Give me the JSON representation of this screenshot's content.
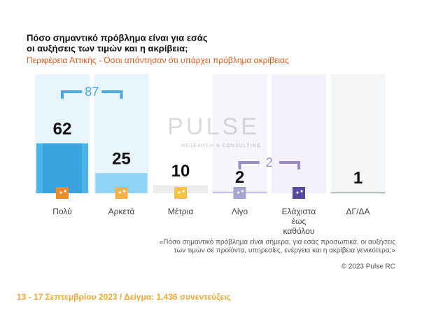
{
  "chart_data": {
    "type": "bar",
    "title": [
      "Πόσο σημαντικό πρόβλημα είναι για εσάς",
      "οι αυξήσεις των τιμών και η ακρίβεια;"
    ],
    "subtitle": "Περιφέρεια Αττικής - Όσοι απάντησαν ότι υπάρχει πρόβλημα ακρίβειας",
    "categories": [
      "Πολύ",
      "Αρκετά",
      "Μέτρια",
      "Λίγο",
      "Ελάχιστα έως καθόλου",
      "ΔΓ/ΔΑ"
    ],
    "values": [
      62,
      25,
      10,
      2,
      0,
      1
    ],
    "bar_colors": [
      "#4db4ea",
      "#8fd4f4",
      "#ececec",
      "#c3c3e3",
      "#b9b0dc",
      "#6d8c8c"
    ],
    "column_colors": [
      "#e8f5fd",
      "#e8f5fd",
      "#ffffff",
      "#f6f5fc",
      "#f4f1fa",
      "#f4f5f7"
    ],
    "icon_colors": [
      "#ef8a2a",
      "#f4b148",
      "#f4c33f",
      "#a5a5d6",
      "#574a9e"
    ],
    "groups": [
      {
        "total": 87,
        "from": "Πολύ",
        "to": "Αρκετά",
        "color": "#4aa9dd"
      },
      {
        "total": 2,
        "from": "Λίγο",
        "to": "Ελάχιστα έως καθόλου",
        "color": "#9a8ccb"
      }
    ],
    "watermark": [
      "PULSE",
      "RESEARCH & CONSULTING"
    ],
    "note": [
      "«Πόσο σημαντικό πρόβλημα είναι σήμερα, για εσάς προσωπικά, οι αυξήσεις",
      "των τιμών σε προϊόντα, υπηρεσίες, ενέργεια και η ακρίβεια γενικότερα;»"
    ],
    "copyright": "© 2023 Pulse RC",
    "footer": "13 - 17  Σεπτεμβρίου  2023  /  Δείγμα:  1.436 συνεντεύξεις"
  }
}
